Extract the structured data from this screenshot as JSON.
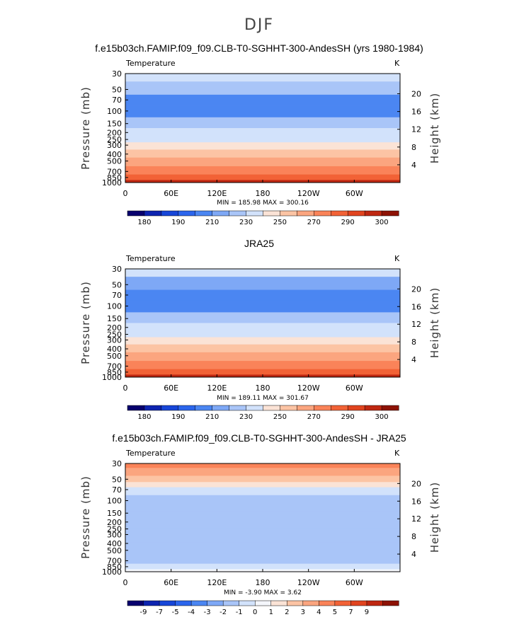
{
  "figure_title": "DJF",
  "colors": {
    "abs": [
      "#08006e",
      "#0d24b0",
      "#1746d8",
      "#2b65ec",
      "#4b86f2",
      "#7ea8f6",
      "#a9c5f8",
      "#d2e2fb",
      "#fbe3d6",
      "#fcc4a4",
      "#fba57f",
      "#fa8359",
      "#f26236",
      "#e1441f",
      "#bf2711",
      "#8d1205"
    ],
    "diff": [
      "#08006e",
      "#0d24b0",
      "#1746d8",
      "#2b65ec",
      "#4b86f2",
      "#7ea8f6",
      "#a9c5f8",
      "#d2e2fb",
      "#f4f6fb",
      "#fbe3d6",
      "#fcc4a4",
      "#fba57f",
      "#fa8359",
      "#f26236",
      "#e1441f",
      "#bf2711",
      "#8d1205"
    ]
  },
  "chart_data": [
    {
      "type": "heatmap",
      "title": "f.e15b03ch.FAMIP.f09_f09.CLB-T0-SGHHT-300-AndesSH (yrs 1980-1984)",
      "left_label": "Temperature",
      "units": "K",
      "ylabel": "Pressure  (mb)",
      "y2label": "Height  (km)",
      "x_ticks": [
        "0",
        "60E",
        "120E",
        "180",
        "120W",
        "60W"
      ],
      "x_tick_values": [
        0,
        60,
        120,
        180,
        240,
        300
      ],
      "xlim": [
        0,
        360
      ],
      "y_ticks": [
        "30",
        "50",
        "70",
        "100",
        "150",
        "200",
        "250",
        "300",
        "400",
        "500",
        "700",
        "850",
        "1000"
      ],
      "y_tick_values": [
        30,
        50,
        70,
        100,
        150,
        200,
        250,
        300,
        400,
        500,
        700,
        850,
        1000
      ],
      "ylim": [
        30,
        1000
      ],
      "height_ticks": [
        "20",
        "16",
        "12",
        "8",
        "4"
      ],
      "height_tick_values": [
        20,
        16,
        12,
        8,
        4
      ],
      "stats": "MIN = 185.98   MAX = 300.16",
      "levels": [
        30,
        50,
        70,
        100,
        150,
        200,
        250,
        300,
        400,
        500,
        700,
        850,
        1000
      ],
      "level_colors": [
        7,
        6,
        4,
        4,
        6,
        7,
        7,
        8,
        9,
        10,
        11,
        12,
        14
      ],
      "colorbar_labels": [
        "180",
        "190",
        "210",
        "230",
        "250",
        "270",
        "290",
        "300"
      ],
      "colorbar_ticks": [
        1,
        3,
        5,
        7,
        9,
        11,
        13,
        15
      ]
    },
    {
      "type": "heatmap",
      "title": "JRA25",
      "left_label": "Temperature",
      "units": "K",
      "ylabel": "Pressure  (mb)",
      "y2label": "Height  (km)",
      "x_ticks": [
        "0",
        "60E",
        "120E",
        "180",
        "120W",
        "60W"
      ],
      "x_tick_values": [
        0,
        60,
        120,
        180,
        240,
        300
      ],
      "xlim": [
        0,
        360
      ],
      "y_ticks": [
        "30",
        "50",
        "70",
        "100",
        "150",
        "200",
        "250",
        "300",
        "400",
        "500",
        "700",
        "850",
        "1000"
      ],
      "y_tick_values": [
        30,
        50,
        70,
        100,
        150,
        200,
        250,
        300,
        400,
        500,
        700,
        850,
        1000
      ],
      "ylim": [
        30,
        1000
      ],
      "height_ticks": [
        "20",
        "16",
        "12",
        "8",
        "4"
      ],
      "height_tick_values": [
        20,
        16,
        12,
        8,
        4
      ],
      "stats": "MIN = 189.11   MAX = 301.67",
      "levels": [
        30,
        50,
        70,
        100,
        150,
        200,
        250,
        300,
        400,
        500,
        700,
        850,
        1000
      ],
      "level_colors": [
        7,
        5,
        4,
        4,
        6,
        7,
        7,
        8,
        9,
        10,
        11,
        12,
        14
      ],
      "colorbar_labels": [
        "180",
        "190",
        "210",
        "230",
        "250",
        "270",
        "290",
        "300"
      ],
      "colorbar_ticks": [
        1,
        3,
        5,
        7,
        9,
        11,
        13,
        15
      ]
    },
    {
      "type": "heatmap",
      "title": "f.e15b03ch.FAMIP.f09_f09.CLB-T0-SGHHT-300-AndesSH - JRA25",
      "left_label": "Temperature",
      "units": "K",
      "ylabel": "Pressure  (mb)",
      "y2label": "Height  (km)",
      "x_ticks": [
        "0",
        "60E",
        "120E",
        "180",
        "120W",
        "60W"
      ],
      "x_tick_values": [
        0,
        60,
        120,
        180,
        240,
        300
      ],
      "xlim": [
        0,
        360
      ],
      "y_ticks": [
        "30",
        "50",
        "70",
        "100",
        "150",
        "200",
        "250",
        "300",
        "400",
        "500",
        "700",
        "850",
        "1000"
      ],
      "y_tick_values": [
        30,
        50,
        70,
        100,
        150,
        200,
        250,
        300,
        400,
        500,
        700,
        850,
        1000
      ],
      "ylim": [
        30,
        1000
      ],
      "height_ticks": [
        "20",
        "16",
        "12",
        "8",
        "4"
      ],
      "height_tick_values": [
        20,
        16,
        12,
        8,
        4
      ],
      "stats": "MIN =  -3.90   MAX =   3.62",
      "levels": [
        30,
        40,
        50,
        60,
        70,
        100,
        200,
        300,
        500,
        700,
        850,
        1000
      ],
      "level_colors": [
        12,
        11,
        10,
        9,
        7,
        6,
        6,
        6,
        6,
        6,
        7,
        8
      ],
      "colorbar_labels": [
        "-9",
        "-7",
        "-5",
        "-4",
        "-3",
        "-2",
        "-1",
        "0",
        "1",
        "2",
        "3",
        "4",
        "5",
        "7",
        "9"
      ],
      "colorbar_ticks": [
        1,
        2,
        3,
        4,
        5,
        6,
        7,
        8,
        9,
        10,
        11,
        12,
        13,
        14,
        15
      ]
    }
  ]
}
